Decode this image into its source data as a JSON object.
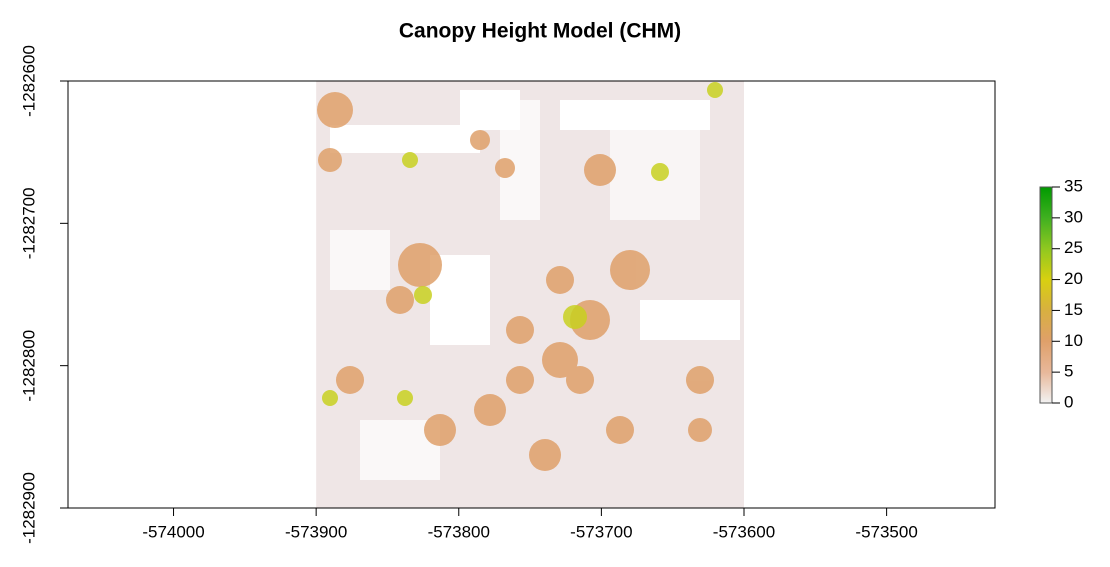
{
  "chart_data": {
    "type": "raster",
    "title": "Canopy Height Model (CHM)",
    "xlim": [
      -574074,
      -573424
    ],
    "xticks": [
      -574000,
      -573900,
      -573800,
      -573700,
      -573600,
      -573500
    ],
    "ylim": [
      -1282900,
      -1282600
    ],
    "yticks": [
      -1282900,
      -1282800,
      -1282700,
      -1282600
    ],
    "raster_xlim": [
      -573900,
      -573600
    ],
    "raster_color": "#efe6e6",
    "colorbar": {
      "lim": [
        0,
        35
      ],
      "ticks": [
        0,
        5,
        10,
        15,
        20,
        25,
        30,
        35
      ],
      "colors": [
        "#f2f2f2",
        "#e8b89a",
        "#dfa06a",
        "#d8b040",
        "#d8d010",
        "#90c820",
        "#40b020",
        "#009a00"
      ]
    }
  }
}
